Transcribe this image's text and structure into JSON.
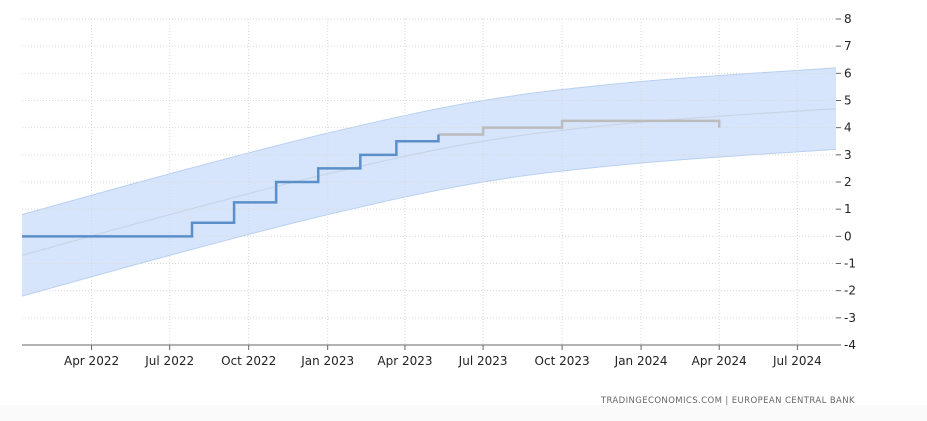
{
  "chart_data": {
    "type": "line",
    "title": "",
    "xlabel": "",
    "ylabel": "",
    "ylim": [
      -4,
      8
    ],
    "xlim": [
      "2022-01-10",
      "2024-08-15"
    ],
    "x_ticks": [
      {
        "date": "2022-04-01",
        "label": "Apr 2022"
      },
      {
        "date": "2022-07-01",
        "label": "Jul 2022"
      },
      {
        "date": "2022-10-01",
        "label": "Oct 2022"
      },
      {
        "date": "2023-01-01",
        "label": "Jan 2023"
      },
      {
        "date": "2023-04-01",
        "label": "Apr 2023"
      },
      {
        "date": "2023-07-01",
        "label": "Jul 2023"
      },
      {
        "date": "2023-10-01",
        "label": "Oct 2023"
      },
      {
        "date": "2024-01-01",
        "label": "Jan 2024"
      },
      {
        "date": "2024-04-01",
        "label": "Apr 2024"
      },
      {
        "date": "2024-07-01",
        "label": "Jul 2024"
      }
    ],
    "y_ticks": [
      8,
      7,
      6,
      5,
      4,
      3,
      2,
      1,
      0,
      -1,
      -2,
      -3,
      -4
    ],
    "grid": true,
    "colors": {
      "actual": "#5b8fc9",
      "forecast": "#bcbcbc",
      "band_fill": "#d6e5fb",
      "band_edge": "#b9d0f2",
      "trend": "#c9d4e6",
      "grid": "#d9d9d9",
      "axis": "#666666"
    },
    "series": [
      {
        "role": "actual",
        "step": true,
        "points": [
          {
            "x": "2022-01-10",
            "y": 0
          },
          {
            "x": "2022-07-27",
            "y": 0.5
          },
          {
            "x": "2022-09-14",
            "y": 1.25
          },
          {
            "x": "2022-11-02",
            "y": 2
          },
          {
            "x": "2022-12-21",
            "y": 2.5
          },
          {
            "x": "2023-02-08",
            "y": 3
          },
          {
            "x": "2023-03-22",
            "y": 3.5
          },
          {
            "x": "2023-05-10",
            "y": 3.75
          }
        ],
        "end": "2023-05-10"
      },
      {
        "role": "forecast",
        "step": true,
        "points": [
          {
            "x": "2023-05-10",
            "y": 3.75
          },
          {
            "x": "2023-07-01",
            "y": 4
          },
          {
            "x": "2023-10-01",
            "y": 4.25
          },
          {
            "x": "2024-01-01",
            "y": 4.25
          }
        ],
        "end": "2024-04-01",
        "end_value": 4
      }
    ],
    "band": {
      "x": [
        "2022-01-10",
        "2022-07-01",
        "2023-01-01",
        "2023-07-01",
        "2024-01-01",
        "2024-08-15"
      ],
      "upper": [
        0.8,
        2.3,
        3.8,
        5.0,
        5.7,
        6.2
      ],
      "lower": [
        -2.2,
        -0.7,
        0.8,
        2.0,
        2.7,
        3.2
      ],
      "center": [
        -0.7,
        0.8,
        2.3,
        3.5,
        4.2,
        4.7
      ]
    },
    "source": "TRADINGECONOMICS.COM  |  EUROPEAN CENTRAL BANK"
  }
}
